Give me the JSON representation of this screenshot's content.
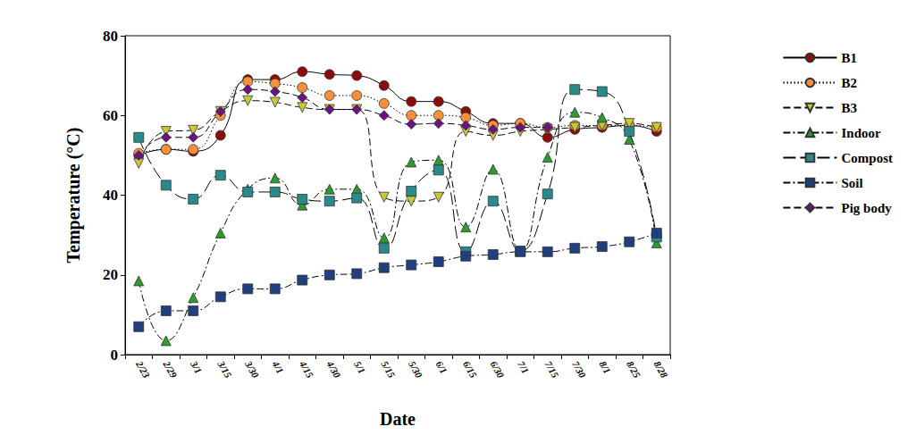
{
  "chart_data": {
    "type": "line",
    "x_label": "Date",
    "y_label": "Temperature (°C)",
    "categories": [
      "2/23",
      "2/29",
      "3/1",
      "3/15",
      "3/30",
      "4/1",
      "4/15",
      "4/30",
      "5/1",
      "5/15",
      "5/30",
      "6/1",
      "6/15",
      "6/30",
      "7/1",
      "7/15",
      "7/30",
      "8/1",
      "8/25",
      "8/28"
    ],
    "ylim": [
      0,
      80
    ],
    "yticks": [
      0,
      20,
      40,
      60,
      80
    ],
    "grid": false,
    "legend": "right",
    "series": [
      {
        "name": "B1",
        "color": "#8b0d0d",
        "marker": "circle",
        "line_style": "solid",
        "values": [
          50,
          51.5,
          51,
          55,
          69,
          69,
          71,
          70.3,
          70,
          67.5,
          63.5,
          63.5,
          61,
          58,
          58,
          54.5,
          56.5,
          57,
          57.5,
          56
        ]
      },
      {
        "name": "B2",
        "color": "#f5913a",
        "marker": "circle",
        "line_style": "dotted",
        "values": [
          50.5,
          51.5,
          51.5,
          60,
          68.5,
          68,
          67,
          65,
          65,
          63,
          60,
          60,
          59.5,
          57.5,
          58,
          57,
          57.5,
          57.5,
          57.5,
          57
        ]
      },
      {
        "name": "B3",
        "color": "#c8c83a",
        "marker": "triangle-down",
        "line_style": "dashed",
        "values": [
          48,
          56,
          56.3,
          61,
          63.7,
          63.3,
          62,
          61.5,
          61.5,
          39.5,
          38.5,
          39.5,
          56,
          55,
          56,
          56.5,
          57,
          57.5,
          58,
          57
        ]
      },
      {
        "name": "Indoor",
        "color": "#2f9a2f",
        "marker": "triangle",
        "line_style": "dashdot",
        "values": [
          18.5,
          3.5,
          14.3,
          30.5,
          41.5,
          44.3,
          37.5,
          41.5,
          41.5,
          29.3,
          48.3,
          48.8,
          32,
          46.5,
          26,
          49.5,
          60.8,
          59.5,
          54,
          28
        ]
      },
      {
        "name": "Compost",
        "color": "#2a8a8a",
        "marker": "square",
        "line_style": "longdash",
        "values": [
          54.5,
          42.5,
          39,
          45,
          40.8,
          40.8,
          39,
          38.5,
          39.3,
          26.7,
          41,
          46.3,
          25.8,
          38.5,
          26,
          40.3,
          66.5,
          66,
          56,
          29.5
        ]
      },
      {
        "name": "Soil",
        "color": "#1f3f7f",
        "marker": "square",
        "line_style": "dashdot",
        "values": [
          7,
          11,
          11,
          14.5,
          16.5,
          16.5,
          18.7,
          20,
          20.3,
          21.8,
          22.5,
          23.3,
          24.7,
          25.1,
          25.8,
          25.8,
          26.7,
          27.1,
          28.3,
          30.5
        ]
      },
      {
        "name": "Pig body",
        "color": "#6a1480",
        "marker": "diamond",
        "line_style": "dashed",
        "values": [
          50,
          54.5,
          54.5,
          61,
          66.5,
          66,
          64.5,
          61.5,
          61.5,
          60,
          57.8,
          58,
          57.5,
          56.5,
          57,
          57,
          null,
          null,
          null,
          null
        ]
      }
    ]
  }
}
